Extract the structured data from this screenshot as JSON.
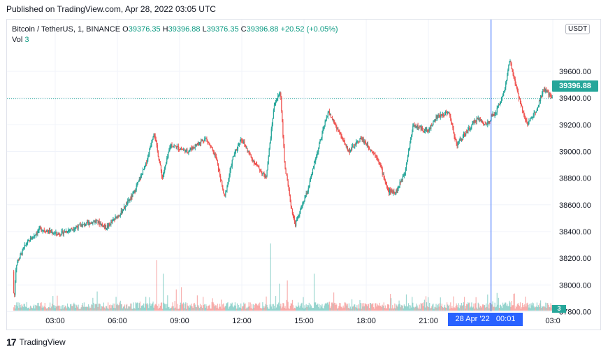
{
  "header": {
    "published": "Published on TradingView.com, Apr 28, 2022 03:05 UTC"
  },
  "legend": {
    "symbol": "Bitcoin / TetherUS, 1, BINANCE",
    "o_label": "O",
    "o_value": "39376.35",
    "h_label": "H",
    "h_value": "39396.88",
    "l_label": "L",
    "l_value": "39376.35",
    "c_label": "C",
    "c_value": "39396.88",
    "change": "+20.52 (+0.05%)",
    "vol_label": "Vol",
    "vol_value": "3"
  },
  "price_axis": {
    "currency": "USDT",
    "last_price": "39396.88",
    "vol_last": "3"
  },
  "cursor": {
    "time_label": "28 Apr '22   00:01"
  },
  "footer": {
    "brand": "TradingView",
    "logo_icon": "tradingview-logo-icon"
  },
  "colors": {
    "up": "#26a69a",
    "down": "#ef5350",
    "last_price_line": "#26a69a",
    "cursor": "#2962ff",
    "grid": "#f0f3fa"
  },
  "chart_data": {
    "type": "candlestick",
    "title": "Bitcoin / TetherUS, 1, BINANCE",
    "interval": "1 minute",
    "currency": "USDT",
    "ylim": [
      37700,
      39800
    ],
    "y_ticks": [
      "37800.00",
      "38000.00",
      "38200.00",
      "38400.00",
      "38600.00",
      "38800.00",
      "39000.00",
      "39200.00",
      "39400.00",
      "39600.00"
    ],
    "x_ticks": [
      "03:00",
      "06:00",
      "09:00",
      "12:00",
      "15:00",
      "18:00",
      "21:00",
      "00:01",
      "03:0"
    ],
    "x_range_hours": [
      1.0,
      27.1
    ],
    "last_price": 39396.88,
    "grid": true,
    "price_path": [
      {
        "t": 1.0,
        "p": 38100
      },
      {
        "t": 1.05,
        "p": 37870
      },
      {
        "t": 1.15,
        "p": 38150
      },
      {
        "t": 1.6,
        "p": 38300
      },
      {
        "t": 2.3,
        "p": 38420
      },
      {
        "t": 3.2,
        "p": 38380
      },
      {
        "t": 4.0,
        "p": 38430
      },
      {
        "t": 5.0,
        "p": 38480
      },
      {
        "t": 5.5,
        "p": 38430
      },
      {
        "t": 6.2,
        "p": 38540
      },
      {
        "t": 6.8,
        "p": 38680
      },
      {
        "t": 7.4,
        "p": 38900
      },
      {
        "t": 7.8,
        "p": 39150
      },
      {
        "t": 8.2,
        "p": 38800
      },
      {
        "t": 8.6,
        "p": 39050
      },
      {
        "t": 9.4,
        "p": 39000
      },
      {
        "t": 10.3,
        "p": 39100
      },
      {
        "t": 10.8,
        "p": 38950
      },
      {
        "t": 11.2,
        "p": 38650
      },
      {
        "t": 11.6,
        "p": 38950
      },
      {
        "t": 12.0,
        "p": 39100
      },
      {
        "t": 12.5,
        "p": 38950
      },
      {
        "t": 13.2,
        "p": 38800
      },
      {
        "t": 13.6,
        "p": 39350
      },
      {
        "t": 13.9,
        "p": 39450
      },
      {
        "t": 14.1,
        "p": 38900
      },
      {
        "t": 14.4,
        "p": 38600
      },
      {
        "t": 14.6,
        "p": 38450
      },
      {
        "t": 15.2,
        "p": 38700
      },
      {
        "t": 15.6,
        "p": 38950
      },
      {
        "t": 16.2,
        "p": 39300
      },
      {
        "t": 16.7,
        "p": 39150
      },
      {
        "t": 17.2,
        "p": 39000
      },
      {
        "t": 17.8,
        "p": 39100
      },
      {
        "t": 18.6,
        "p": 38950
      },
      {
        "t": 19.1,
        "p": 38700
      },
      {
        "t": 19.5,
        "p": 38700
      },
      {
        "t": 19.9,
        "p": 38850
      },
      {
        "t": 20.3,
        "p": 39200
      },
      {
        "t": 21.0,
        "p": 39150
      },
      {
        "t": 21.4,
        "p": 39250
      },
      {
        "t": 22.0,
        "p": 39300
      },
      {
        "t": 22.4,
        "p": 39050
      },
      {
        "t": 22.9,
        "p": 39150
      },
      {
        "t": 23.4,
        "p": 39250
      },
      {
        "t": 23.8,
        "p": 39200
      },
      {
        "t": 24.3,
        "p": 39300
      },
      {
        "t": 24.7,
        "p": 39450
      },
      {
        "t": 24.95,
        "p": 39680
      },
      {
        "t": 25.4,
        "p": 39400
      },
      {
        "t": 25.8,
        "p": 39200
      },
      {
        "t": 26.2,
        "p": 39300
      },
      {
        "t": 26.6,
        "p": 39470
      },
      {
        "t": 27.0,
        "p": 39397
      }
    ],
    "volume_spikes": [
      {
        "t": 7.9,
        "v": 30
      },
      {
        "t": 8.2,
        "v": 22
      },
      {
        "t": 9.1,
        "v": 14
      },
      {
        "t": 13.4,
        "v": 40
      },
      {
        "t": 13.8,
        "v": 16
      },
      {
        "t": 14.2,
        "v": 18
      },
      {
        "t": 15.5,
        "v": 22
      },
      {
        "t": 19.6,
        "v": 6
      },
      {
        "t": 21.0,
        "v": 8
      },
      {
        "t": 25.1,
        "v": 10
      }
    ],
    "cursor_time": "28 Apr '22 00:01",
    "cursor_hour": 24.02
  }
}
